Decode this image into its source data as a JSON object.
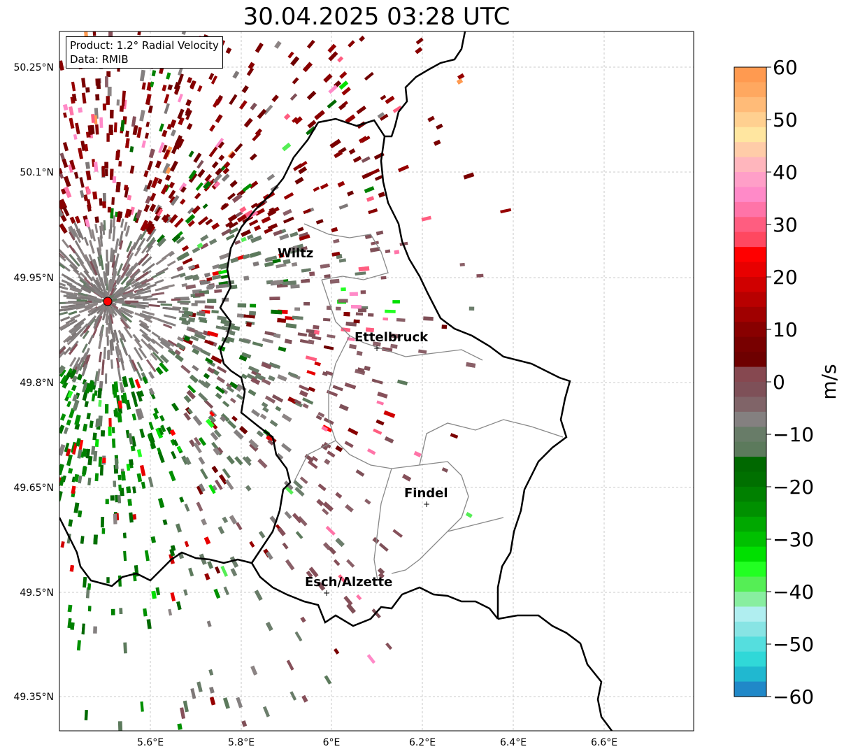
{
  "map": {
    "title": "30.04.2025 03:28 UTC",
    "info": {
      "product": "Product: 1.2° Radial Velocity",
      "data_source": "Data: RMIB"
    },
    "lat_ticks": [
      "50.25°N",
      "50.1°N",
      "49.95°N",
      "49.8°N",
      "49.65°N",
      "49.5°N",
      "49.35°N"
    ],
    "lon_ticks": [
      "5.6°E",
      "5.8°E",
      "6°E",
      "6.2°E",
      "6.4°E",
      "6.6°E"
    ],
    "cities": [
      {
        "name": "Wiltz"
      },
      {
        "name": "Ettelbruck"
      },
      {
        "name": "Findel"
      },
      {
        "name": "Esch/Alzette"
      }
    ],
    "radar_site_color": "#ff0000"
  },
  "colorbar": {
    "label": "m/s",
    "ticks": [
      "60",
      "50",
      "40",
      "30",
      "20",
      "10",
      "0",
      "−10",
      "−20",
      "−30",
      "−40",
      "−50",
      "−60"
    ],
    "colors": [
      "#ff9a50",
      "#ffa860",
      "#ffbb78",
      "#ffd090",
      "#ffe6a0",
      "#ffcca8",
      "#ffb6bd",
      "#ff9fc8",
      "#ff8ac8",
      "#ff74a8",
      "#ff5d80",
      "#ff4860",
      "#ff0000",
      "#e80000",
      "#d00000",
      "#b80000",
      "#a00000",
      "#880000",
      "#780000",
      "#6e0000",
      "#864850",
      "#7e5058",
      "#806468",
      "#848080",
      "#687c68",
      "#5c7a5c",
      "#006800",
      "#007000",
      "#008000",
      "#009000",
      "#00a800",
      "#00c000",
      "#00e000",
      "#22ff22",
      "#55ee55",
      "#88eea0",
      "#b0eef0",
      "#88e4e4",
      "#55dede",
      "#30d8d8",
      "#20b8d0",
      "#2088c8"
    ],
    "min": -60,
    "max": 60
  }
}
